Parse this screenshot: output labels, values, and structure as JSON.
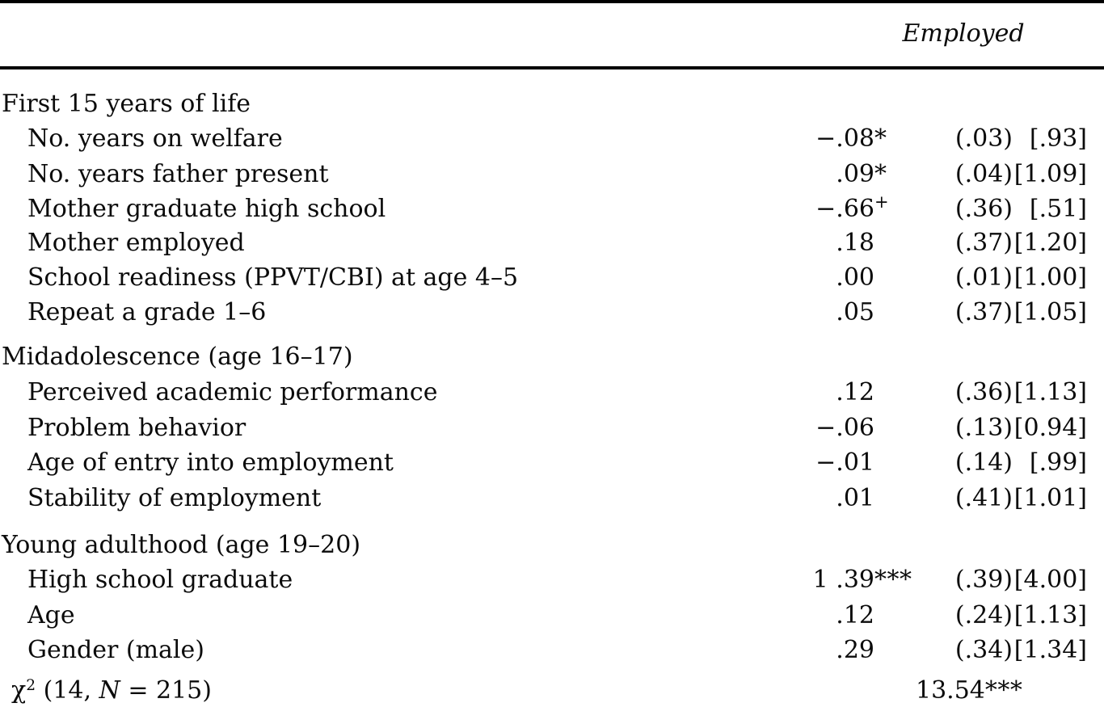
{
  "page": {
    "background_color": "#ffffff",
    "text_color": "#0b0b0b",
    "rule_color": "#000000"
  },
  "table": {
    "column_header": "Employed",
    "sections": [
      {
        "title": "First 15 years of life",
        "rows": [
          {
            "label": "No. years on welfare",
            "coef": "−.08",
            "marker": "*",
            "se": "(.03)",
            "or": "[.93]"
          },
          {
            "label": "No. years father present",
            "coef": ".09",
            "marker": "*",
            "se": "(.04)",
            "or": "[1.09]"
          },
          {
            "label": "Mother graduate high school",
            "coef": "−.66",
            "marker": "+",
            "se": "(.36)",
            "or": "[.51]"
          },
          {
            "label": "Mother employed",
            "coef": ".18",
            "marker": "",
            "se": "(.37)",
            "or": "[1.20]"
          },
          {
            "label": "School readiness (PPVT/CBI) at age 4–5",
            "coef": ".00",
            "marker": "",
            "se": "(.01)",
            "or": "[1.00]"
          },
          {
            "label": "Repeat a grade 1–6",
            "coef": ".05",
            "marker": "",
            "se": "(.37)",
            "or": "[1.05]"
          }
        ]
      },
      {
        "title": "Midadolescence (age 16–17)",
        "rows": [
          {
            "label": "Perceived academic performance",
            "coef": ".12",
            "marker": "",
            "se": "(.36)",
            "or": "[1.13]"
          },
          {
            "label": "Problem behavior",
            "coef": "−.06",
            "marker": "",
            "se": "(.13)",
            "or": "[0.94]"
          },
          {
            "label": "Age of entry into employment",
            "coef": "−.01",
            "marker": "",
            "se": "(.14)",
            "or": "[.99]"
          },
          {
            "label": "Stability of employment",
            "coef": ".01",
            "marker": "",
            "se": "(.41)",
            "or": "[1.01]"
          }
        ]
      },
      {
        "title": "Young adulthood (age 19–20)",
        "rows": [
          {
            "label": "High school graduate",
            "coef": "1 .39",
            "marker": "***",
            "se": "(.39)",
            "or": "[4.00]"
          },
          {
            "label": "Age",
            "coef": ".12",
            "marker": "",
            "se": "(.24)",
            "or": "[1.13]"
          },
          {
            "label": "Gender (male)",
            "coef": ".29",
            "marker": "",
            "se": "(.34)",
            "or": "[1.34]"
          }
        ]
      }
    ],
    "footer": {
      "chi_symbol": "χ",
      "chi_exponent": "2",
      "label_before_n": " (14, ",
      "n_symbol": "N",
      "label_after_n": " = 215)",
      "value": "13.54",
      "marker": "***"
    }
  }
}
